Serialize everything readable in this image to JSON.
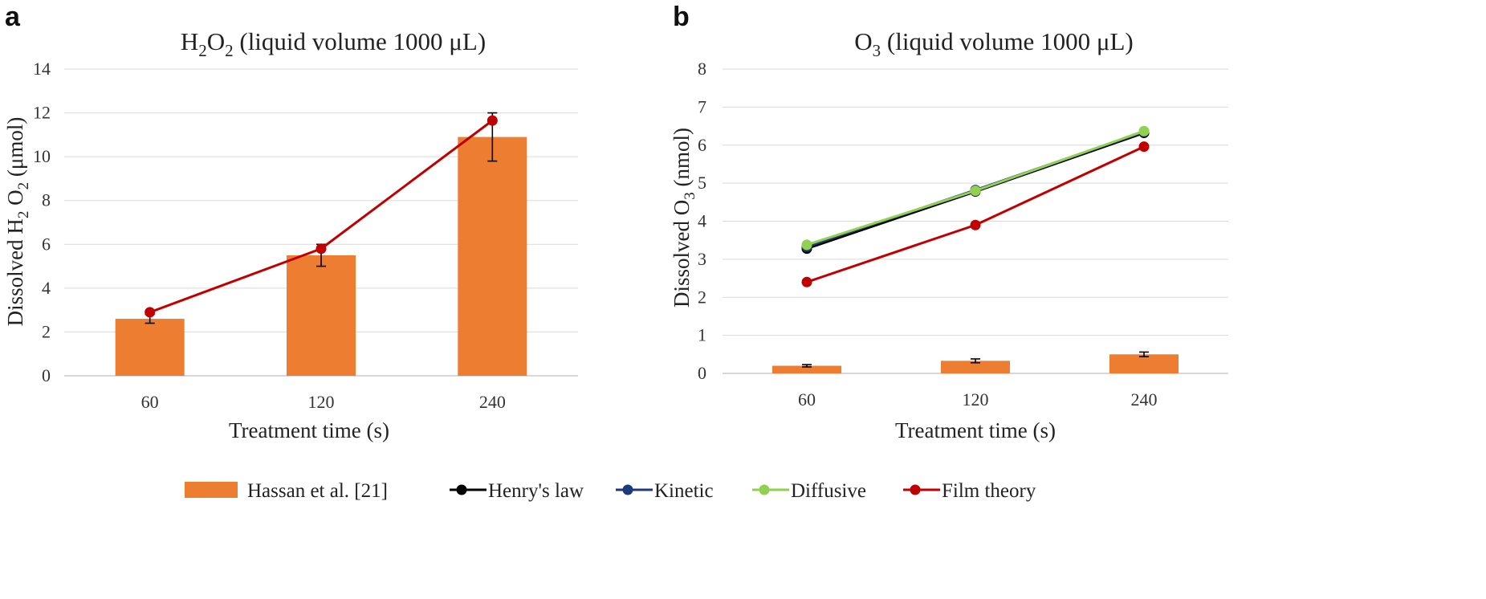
{
  "chart_data": [
    {
      "panel_label": "a",
      "type": "bar",
      "title_main": "H",
      "title_sub1": "2",
      "title_mid": "O",
      "title_sub2": "2",
      "title_rest": " (liquid volume 1000 μL)",
      "xlabel": "Treatment time (s)",
      "ylabel_a": "Dissolved H",
      "ylabel_sub1": "2",
      "ylabel_b": " O",
      "ylabel_sub2": "2",
      "ylabel_c": " (μmol)",
      "categories": [
        "60",
        "120",
        "240"
      ],
      "ylim": [
        0,
        14
      ],
      "yticks": [
        "0",
        "2",
        "4",
        "6",
        "8",
        "10",
        "12",
        "14"
      ],
      "grid": true,
      "bars": {
        "name": "Hassan  et al. [21]",
        "values": [
          2.6,
          5.5,
          10.9
        ],
        "error": [
          0.2,
          0.5,
          1.1
        ],
        "color": "#ed7d31"
      },
      "series": [
        {
          "name": "Film theory",
          "values": [
            2.9,
            5.8,
            11.65
          ],
          "color": "#c00000"
        }
      ]
    },
    {
      "panel_label": "b",
      "type": "bar",
      "title_main": "O",
      "title_sub1": "3",
      "title_rest": " (liquid volume 1000 μL)",
      "xlabel": "Treatment time (s)",
      "ylabel_a": "Dissolved O",
      "ylabel_sub1": "3",
      "ylabel_c": " (nmol)",
      "categories": [
        "60",
        "120",
        "240"
      ],
      "ylim": [
        0,
        8
      ],
      "yticks": [
        "0",
        "1",
        "2",
        "3",
        "4",
        "5",
        "6",
        "7",
        "8"
      ],
      "grid": true,
      "bars": {
        "name": "Hassan  et al. [21]",
        "values": [
          0.2,
          0.33,
          0.5
        ],
        "error": [
          0.03,
          0.05,
          0.06
        ],
        "color": "#ed7d31"
      },
      "series": [
        {
          "name": "Henry's law",
          "values": [
            3.28,
            4.78,
            6.32
          ],
          "color": "#000000"
        },
        {
          "name": "Kinetic",
          "values": [
            3.33,
            4.82,
            6.35
          ],
          "color": "#1f3a7a"
        },
        {
          "name": "Diffusive",
          "values": [
            3.38,
            4.8,
            6.37
          ],
          "color": "#92d050"
        },
        {
          "name": "Film theory",
          "values": [
            2.4,
            3.9,
            5.96
          ],
          "color": "#c00000"
        }
      ]
    }
  ],
  "legend": {
    "placement": "bottom",
    "items": [
      {
        "label": "Hassan  et al. [21]",
        "kind": "bar",
        "color": "#ed7d31"
      },
      {
        "label": "Henry's law",
        "kind": "line",
        "color": "#000000"
      },
      {
        "label": "Kinetic",
        "kind": "line",
        "color": "#1f3a7a"
      },
      {
        "label": "Diffusive",
        "kind": "line",
        "color": "#92d050"
      },
      {
        "label": "Film theory",
        "kind": "line",
        "color": "#c00000"
      }
    ]
  }
}
